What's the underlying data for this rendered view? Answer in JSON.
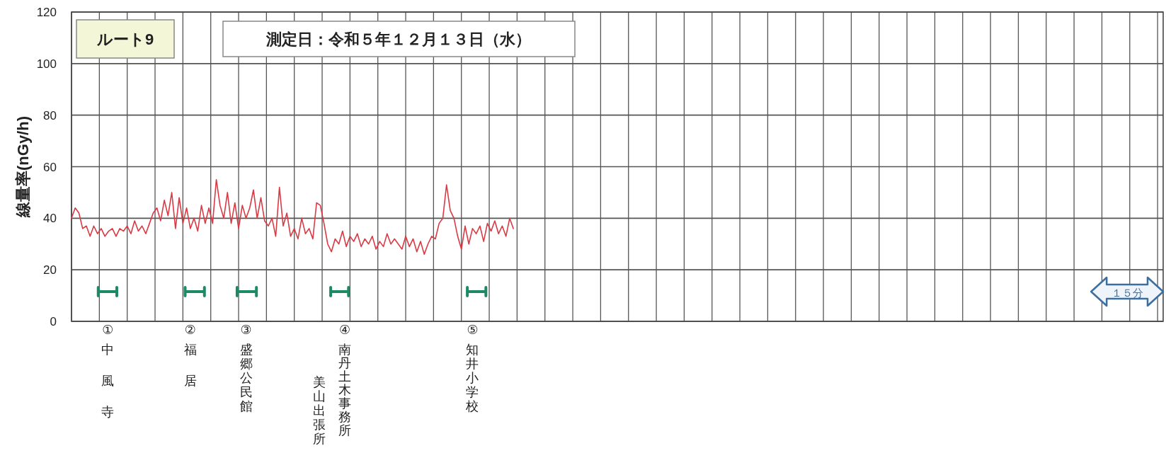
{
  "chart_data": {
    "type": "line",
    "title": "ルート9",
    "subtitle": "測定日：令和５年１２月１３日（水）",
    "ylabel": "線量率(nGy/h)",
    "categories": [
      null,
      null,
      null,
      null,
      null,
      null,
      null,
      null,
      null,
      null,
      null,
      null,
      null,
      null,
      null,
      null,
      null,
      null,
      null,
      null,
      null,
      null,
      null,
      null,
      null,
      null,
      null,
      null,
      null,
      null,
      null,
      null,
      null,
      null,
      null,
      null,
      null,
      null,
      null,
      null,
      null,
      null,
      null,
      null,
      null,
      null,
      null,
      null,
      null,
      null,
      null,
      null,
      null,
      null,
      null,
      null,
      null,
      null,
      null,
      null,
      null,
      null,
      null,
      null,
      null,
      null,
      null,
      null,
      null,
      null,
      null,
      null,
      null,
      null,
      null,
      null,
      null,
      null,
      null,
      null,
      null,
      null,
      null,
      null,
      null,
      null,
      null,
      null,
      null,
      null,
      null,
      null,
      null,
      null,
      null,
      null,
      null,
      null,
      null,
      null,
      null,
      null,
      null,
      null,
      null,
      null,
      null,
      null,
      null,
      null,
      null,
      null,
      null,
      null,
      null,
      null,
      null,
      null,
      null,
      null,
      null,
      null,
      null,
      null,
      null,
      null,
      null,
      null,
      null,
      null,
      null,
      null,
      null,
      null,
      null,
      null,
      null,
      null,
      null,
      null,
      null,
      null,
      null,
      null,
      null,
      null,
      null,
      null,
      null,
      null,
      null,
      null,
      null,
      null,
      null,
      null,
      null,
      null,
      null,
      null,
      null,
      null,
      null,
      null,
      null,
      null,
      null,
      null,
      null,
      null,
      null,
      null,
      null,
      null,
      null,
      null,
      null,
      null,
      null,
      null,
      null,
      null,
      null,
      null,
      null,
      null,
      null,
      null,
      null,
      null,
      null,
      null,
      null,
      null,
      null,
      null,
      null,
      null,
      null,
      null,
      null,
      null,
      null,
      null,
      null,
      null,
      null,
      null,
      null,
      null,
      null,
      null,
      null,
      null,
      null,
      null,
      null,
      null,
      null,
      null,
      null,
      null,
      null,
      null,
      null,
      null,
      null,
      null,
      null,
      null,
      null,
      null,
      null,
      null,
      null,
      null,
      null,
      null,
      null,
      null,
      null,
      null,
      null,
      null,
      null,
      null,
      null,
      null,
      null,
      null,
      null,
      null,
      null,
      null,
      null,
      null,
      null,
      null,
      null,
      null,
      null,
      null,
      null,
      null,
      null,
      null,
      null,
      null,
      null,
      null,
      null,
      null,
      null,
      null,
      null,
      null,
      null,
      null,
      null,
      null,
      null,
      null,
      null,
      null,
      null,
      null,
      null,
      null,
      null,
      null,
      null,
      null,
      null,
      null,
      null
    ],
    "series": [
      {
        "color": "#d93a44",
        "values": [
          40,
          44,
          42,
          36,
          37,
          33,
          37,
          34,
          36,
          33,
          35,
          36,
          33,
          36,
          35,
          37,
          34,
          39,
          35,
          37,
          34,
          38,
          42,
          44,
          39,
          47,
          41,
          50,
          36,
          48,
          38,
          44,
          36,
          40,
          35,
          45,
          38,
          44,
          38,
          55,
          45,
          40,
          50,
          38,
          46,
          36,
          45,
          40,
          44,
          51,
          40,
          48,
          39,
          37,
          40,
          33,
          52,
          37,
          42,
          33,
          36,
          32,
          40,
          34,
          36,
          32,
          46,
          45,
          38,
          30,
          27,
          32,
          30,
          35,
          29,
          33,
          31,
          34,
          29,
          32,
          30,
          33,
          28,
          31,
          29,
          34,
          30,
          32,
          30,
          28,
          33,
          29,
          32,
          27,
          31,
          26,
          30,
          33,
          32,
          38,
          40,
          53,
          43,
          40,
          33,
          28,
          37,
          30,
          36,
          34,
          37,
          31,
          38,
          35,
          39,
          34,
          37,
          33,
          40,
          36,
          null,
          null,
          null,
          null,
          null,
          null,
          null,
          null,
          null,
          null,
          null,
          null,
          null,
          null,
          null,
          null,
          null,
          null,
          null,
          null,
          null,
          null,
          null,
          null,
          null,
          null,
          null,
          null,
          null,
          null,
          null,
          null,
          null,
          null,
          null,
          null,
          null,
          null,
          null,
          null,
          null,
          null,
          null,
          null,
          null,
          null,
          null,
          null,
          null,
          null,
          null,
          null,
          null,
          null,
          null,
          null,
          null,
          null,
          null,
          null,
          null,
          null,
          null,
          null,
          null,
          null,
          null,
          null,
          null,
          null,
          null,
          null,
          null,
          null,
          null,
          null,
          null,
          null,
          null,
          null,
          null,
          null,
          null,
          null,
          null,
          null,
          null,
          null,
          null,
          null,
          null,
          null,
          null,
          null,
          null,
          null,
          null,
          null,
          null,
          null,
          null,
          null,
          null,
          null,
          null,
          null,
          null,
          null,
          null,
          null,
          null,
          null,
          null,
          null,
          null,
          null,
          null,
          null,
          null,
          null,
          null,
          null,
          null,
          null,
          null,
          null,
          null,
          null,
          null,
          null,
          null,
          null,
          null,
          null,
          null,
          null,
          null,
          null,
          null,
          null,
          null,
          null,
          null,
          null,
          null,
          null,
          null,
          null,
          null,
          null,
          null,
          null,
          null,
          null,
          null,
          null,
          null,
          null,
          null,
          null,
          null,
          null,
          null,
          null,
          null,
          null,
          null,
          null,
          null,
          null,
          null,
          null,
          null,
          null,
          null
        ]
      }
    ],
    "ylim": [
      0,
      120
    ],
    "yticks": [
      0,
      20,
      40,
      60,
      80,
      100,
      120
    ],
    "grid": true,
    "annotations": [
      "①中風寺",
      "②福居",
      "③盛郷公民館",
      "④南丹土木事務所",
      "美山出張所",
      "⑤知井小学校",
      "１５分"
    ]
  }
}
